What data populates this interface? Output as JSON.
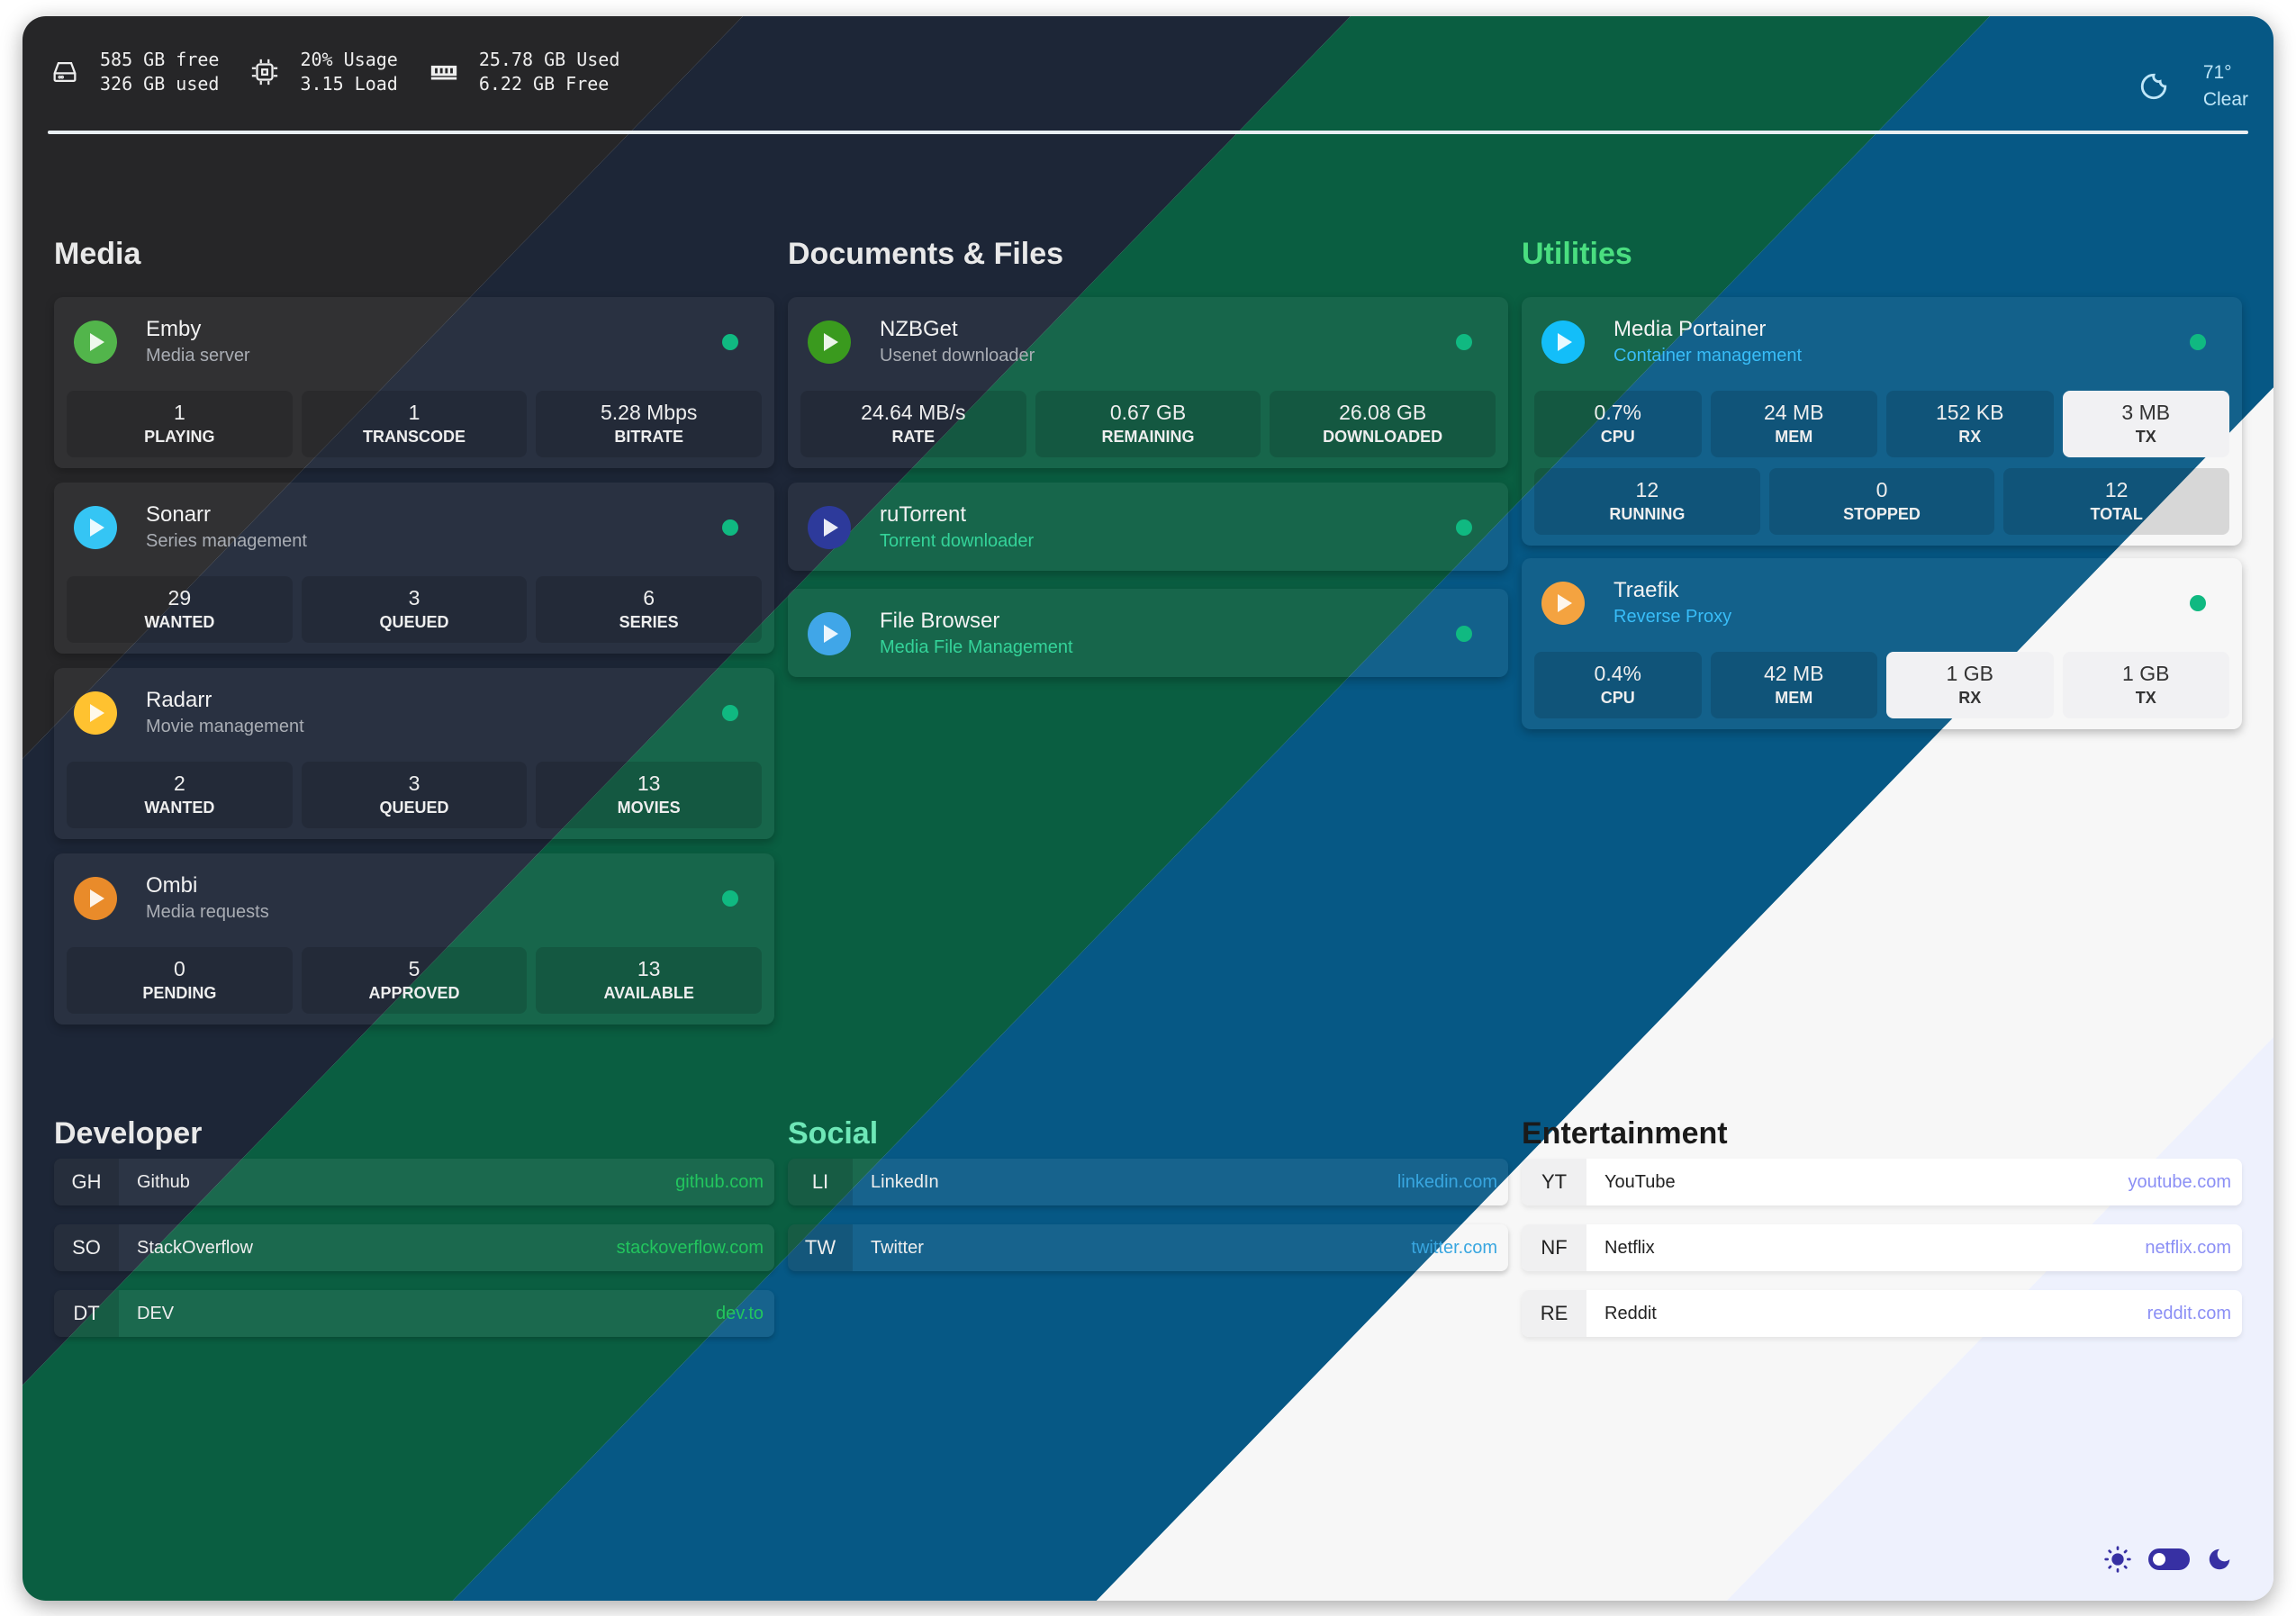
{
  "topbar": {
    "disk": {
      "icon": "hard-drive-icon",
      "line1": "585 GB free",
      "line2": "326 GB used"
    },
    "cpu": {
      "icon": "cpu-chip-icon",
      "line1": "20% Usage",
      "line2": "3.15 Load"
    },
    "ram": {
      "icon": "memory-icon",
      "line1": "25.78 GB Used",
      "line2": "6.22 GB Free"
    },
    "weather": {
      "icon": "moon-icon",
      "temp": "71°",
      "condition": "Clear"
    }
  },
  "colors": {
    "online": "#10b981",
    "band_gray": "#262628",
    "band_navy": "#1d2637",
    "band_green": "#0a5e41",
    "band_blue": "#065885",
    "band_white": "#f7f7f7",
    "band_lavender": "#eef1fd",
    "toggle": "#3730a3"
  },
  "sections": [
    {
      "title": "Media",
      "title_color": "#e9e9e9",
      "cards": [
        {
          "name": "Emby",
          "subtitle": "Media server",
          "icon": "emby-icon",
          "icon_color": "#52b54b",
          "subtitle_color": "#a9adb4",
          "rows": [
            [
              {
                "value": "1",
                "label": "PLAYING"
              },
              {
                "value": "1",
                "label": "TRANSCODE"
              },
              {
                "value": "5.28 Mbps",
                "label": "BITRATE"
              }
            ]
          ]
        },
        {
          "name": "Sonarr",
          "subtitle": "Series management",
          "icon": "sonarr-icon",
          "icon_color": "#35c5f4",
          "subtitle_color": "#a9adb4",
          "rows": [
            [
              {
                "value": "29",
                "label": "WANTED"
              },
              {
                "value": "3",
                "label": "QUEUED"
              },
              {
                "value": "6",
                "label": "SERIES"
              }
            ]
          ]
        },
        {
          "name": "Radarr",
          "subtitle": "Movie management",
          "icon": "radarr-icon",
          "icon_color": "#ffc230",
          "subtitle_color": "#a9adb4",
          "rows": [
            [
              {
                "value": "2",
                "label": "WANTED"
              },
              {
                "value": "3",
                "label": "QUEUED"
              },
              {
                "value": "13",
                "label": "MOVIES"
              }
            ]
          ]
        },
        {
          "name": "Ombi",
          "subtitle": "Media requests",
          "icon": "ombi-icon",
          "icon_color": "#e98b2a",
          "subtitle_color": "#a9adb4",
          "rows": [
            [
              {
                "value": "0",
                "label": "PENDING"
              },
              {
                "value": "5",
                "label": "APPROVED"
              },
              {
                "value": "13",
                "label": "AVAILABLE"
              }
            ]
          ]
        }
      ]
    },
    {
      "title": "Documents & Files",
      "title_color": "#e9e9e9",
      "cards": [
        {
          "name": "NZBGet",
          "subtitle": "Usenet downloader",
          "icon": "nzbget-icon",
          "icon_color": "#3a9a1e",
          "subtitle_color": "#a9adb4",
          "rows": [
            [
              {
                "value": "24.64 MB/s",
                "label": "RATE"
              },
              {
                "value": "0.67 GB",
                "label": "REMAINING"
              },
              {
                "value": "26.08 GB",
                "label": "DOWNLOADED"
              }
            ]
          ]
        },
        {
          "name": "ruTorrent",
          "subtitle": "Torrent downloader",
          "icon": "rutorrent-icon",
          "icon_color": "#2d3a9b",
          "subtitle_color": "#34d399",
          "rows": []
        },
        {
          "name": "File Browser",
          "subtitle": "Media File Management",
          "icon": "filebrowser-icon",
          "icon_color": "#40a6e8",
          "subtitle_color": "#34d399",
          "rows": []
        }
      ]
    },
    {
      "title": "Utilities",
      "title_color": "#4ade80",
      "cards": [
        {
          "name": "Media Portainer",
          "subtitle": "Container management",
          "icon": "portainer-icon",
          "icon_color": "#13bef9",
          "subtitle_color": "#38bdf8",
          "rows": [
            [
              {
                "value": "0.7%",
                "label": "CPU"
              },
              {
                "value": "24 MB",
                "label": "MEM"
              },
              {
                "value": "152 KB",
                "label": "RX"
              },
              {
                "value": "3 MB",
                "label": "TX"
              }
            ],
            [
              {
                "value": "12",
                "label": "RUNNING"
              },
              {
                "value": "0",
                "label": "STOPPED"
              },
              {
                "value": "12",
                "label": "TOTAL"
              }
            ]
          ]
        },
        {
          "name": "Traefik",
          "subtitle": "Reverse Proxy",
          "icon": "traefik-gopher-icon",
          "icon_color": "#f4a340",
          "subtitle_color": "#38bdf8",
          "rows": [
            [
              {
                "value": "0.4%",
                "label": "CPU"
              },
              {
                "value": "42 MB",
                "label": "MEM"
              },
              {
                "value": "1 GB",
                "label": "RX"
              },
              {
                "value": "1 GB",
                "label": "TX"
              }
            ]
          ]
        }
      ]
    }
  ],
  "bookmarks": [
    {
      "title": "Developer",
      "title_color": "#e9e9e9",
      "url_color": "#22c55e",
      "items": [
        {
          "abbr": "GH",
          "name": "Github",
          "url": "github.com"
        },
        {
          "abbr": "SO",
          "name": "StackOverflow",
          "url": "stackoverflow.com"
        },
        {
          "abbr": "DT",
          "name": "DEV",
          "url": "dev.to"
        }
      ]
    },
    {
      "title": "Social",
      "title_color": "#6ee7b7",
      "url_color": "#38a6e0",
      "items": [
        {
          "abbr": "LI",
          "name": "LinkedIn",
          "url": "linkedin.com"
        },
        {
          "abbr": "TW",
          "name": "Twitter",
          "url": "twitter.com"
        }
      ]
    },
    {
      "title": "Entertainment",
      "title_color": "#1a1a1a",
      "url_color": "#8b8ff5",
      "items": [
        {
          "abbr": "YT",
          "name": "YouTube",
          "url": "youtube.com"
        },
        {
          "abbr": "NF",
          "name": "Netflix",
          "url": "netflix.com"
        },
        {
          "abbr": "RE",
          "name": "Reddit",
          "url": "reddit.com"
        }
      ]
    }
  ],
  "theme_toggle": {
    "light_icon": "sun-icon",
    "dark_icon": "moon-icon",
    "state": "light"
  }
}
